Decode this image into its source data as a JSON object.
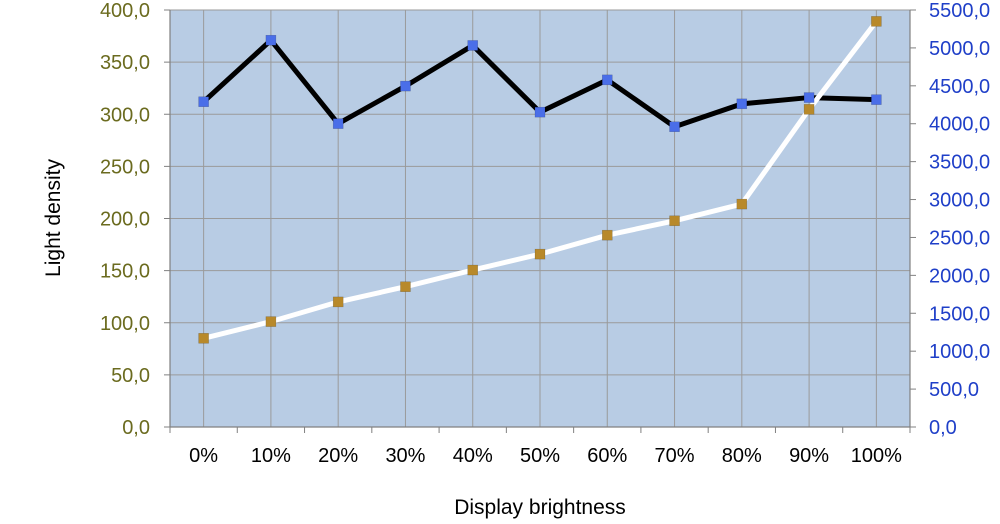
{
  "chart_data": {
    "type": "line",
    "title": "",
    "xlabel": "Display brightness",
    "ylabel": "Light density",
    "y2label": "",
    "categories": [
      "0%",
      "10%",
      "20%",
      "30%",
      "40%",
      "50%",
      "60%",
      "70%",
      "80%",
      "90%",
      "100%"
    ],
    "ylim": [
      0,
      400
    ],
    "y2lim": [
      0,
      5500
    ],
    "yticks": [
      "0,0",
      "50,0",
      "100,0",
      "150,0",
      "200,0",
      "250,0",
      "300,0",
      "350,0",
      "400,0"
    ],
    "y2ticks": [
      "0,0",
      "500,0",
      "1000,0",
      "1500,0",
      "2000,0",
      "2500,0",
      "3000,0",
      "3500,0",
      "4000,0",
      "4500,0",
      "5000,0",
      "5500,0"
    ],
    "grid": true,
    "legend": "none",
    "series": [
      {
        "axis": "left",
        "values": [
          312,
          371,
          291,
          327,
          366,
          302,
          333,
          288,
          310,
          316,
          314
        ],
        "line_color": "#000000",
        "marker_color": "#4a6ee8"
      },
      {
        "axis": "right",
        "values": [
          1170,
          1390,
          1650,
          1850,
          2070,
          2280,
          2530,
          2720,
          2940,
          4190,
          5350
        ],
        "line_color": "#ffffff",
        "marker_color": "#b8892a"
      }
    ],
    "colors": {
      "plot_background": "#b8cce4",
      "grid": "#9a9a9a",
      "left_tick_text": "#6b6b1f",
      "right_tick_text": "#1f3fc8"
    }
  }
}
